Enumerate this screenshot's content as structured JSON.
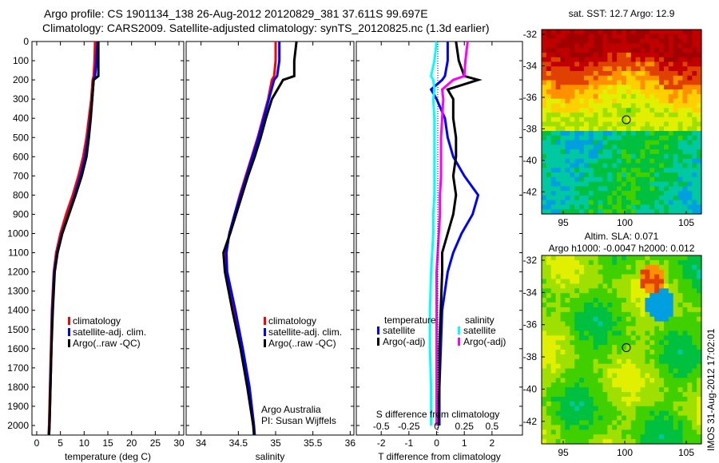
{
  "header": {
    "line1": "Argo profile: CS 1901134_138 26-Aug-2012 20120829_381 37.611S 99.697E",
    "line2": "Climatology: CARS2009. Satellite-adjusted climatology: synTS_20120825.nc (1.3d earlier)"
  },
  "colors": {
    "climatology": "#ff0000",
    "satellite": "#0000ff",
    "argo": "#000000",
    "s_satellite": "#00ffff",
    "s_argo": "#ff00ff"
  },
  "chart_data": [
    {
      "type": "line",
      "name": "temperature",
      "xlabel": "temperature (deg C)",
      "xlim": [
        -1,
        31
      ],
      "ylim": [
        2050,
        0
      ],
      "xticks": [
        "0",
        "5",
        "10",
        "15",
        "20",
        "25",
        "30"
      ],
      "xtick_values": [
        0,
        5,
        10,
        15,
        20,
        25,
        30
      ],
      "yticks": [
        "0",
        "100",
        "200",
        "300",
        "400",
        "500",
        "600",
        "700",
        "800",
        "900",
        "1000",
        "1100",
        "1200",
        "1300",
        "1400",
        "1500",
        "1600",
        "1700",
        "1800",
        "1900",
        "2000"
      ],
      "legend": [
        "climatology",
        "satellite-adj. clim.",
        "Argo(..raw -QC)"
      ],
      "depth": [
        0,
        100,
        180,
        200,
        300,
        400,
        500,
        600,
        700,
        800,
        900,
        1000,
        1100,
        1200,
        1400,
        1600,
        1800,
        2000,
        2050
      ],
      "series": [
        {
          "name": "climatology",
          "values": [
            12.3,
            12.2,
            12.0,
            11.8,
            11.5,
            11.0,
            10.5,
            9.8,
            8.8,
            7.6,
            6.2,
            5.0,
            4.1,
            3.6,
            3.2,
            3.0,
            2.8,
            2.6,
            2.5
          ]
        },
        {
          "name": "satellite",
          "values": [
            12.8,
            12.6,
            12.3,
            12.0,
            11.7,
            11.3,
            10.8,
            10.2,
            9.2,
            8.0,
            6.7,
            5.3,
            4.3,
            3.7,
            3.3,
            3.1,
            2.9,
            2.7,
            2.6
          ]
        },
        {
          "name": "argo",
          "values": [
            13.0,
            13.0,
            13.0,
            12.0,
            11.7,
            11.4,
            11.0,
            10.5,
            9.5,
            8.2,
            6.8,
            5.4,
            4.4,
            3.8,
            3.4,
            3.1,
            2.9,
            2.7,
            2.6
          ]
        }
      ]
    },
    {
      "type": "line",
      "name": "salinity",
      "xlabel": "salinity",
      "xlim": [
        33.8,
        36.05
      ],
      "ylim": [
        2050,
        0
      ],
      "xticks": [
        "34",
        "34.5",
        "35",
        "35.5",
        "36"
      ],
      "xtick_values": [
        34,
        34.5,
        35,
        35.5,
        36
      ],
      "legend": [
        "climatology",
        "satellite-adj. clim.",
        "Argo(..raw -QC)"
      ],
      "notes": [
        "Argo Australia",
        "PI: Susan Wijffels"
      ],
      "depth": [
        0,
        100,
        180,
        200,
        300,
        400,
        500,
        600,
        700,
        800,
        900,
        1000,
        1100,
        1200,
        1400,
        1600,
        1800,
        2000,
        2050
      ],
      "series": [
        {
          "name": "climatology",
          "values": [
            35.0,
            35.0,
            34.98,
            34.95,
            34.9,
            34.83,
            34.76,
            34.68,
            34.6,
            34.52,
            34.45,
            34.38,
            34.33,
            34.34,
            34.45,
            34.55,
            34.64,
            34.7,
            34.72
          ]
        },
        {
          "name": "satellite",
          "values": [
            35.05,
            35.05,
            35.02,
            34.98,
            34.91,
            34.84,
            34.77,
            34.69,
            34.61,
            34.53,
            34.45,
            34.38,
            34.34,
            34.35,
            34.46,
            34.56,
            34.65,
            34.71,
            34.72
          ]
        },
        {
          "name": "argo",
          "values": [
            35.28,
            35.25,
            35.25,
            35.1,
            34.95,
            34.87,
            34.8,
            34.72,
            34.63,
            34.55,
            34.47,
            34.39,
            34.3,
            34.32,
            34.42,
            34.53,
            34.62,
            34.7,
            34.71
          ]
        }
      ]
    },
    {
      "type": "line",
      "name": "difference",
      "xlabel": "T difference from climatology",
      "x2label": "S difference from climatology",
      "xlim": [
        -2.9,
        3.1
      ],
      "xticks": [
        "-2",
        "-1",
        "0",
        "1",
        "2"
      ],
      "xtick_values": [
        -2,
        -1,
        0,
        1,
        2
      ],
      "x2ticks": [
        "-0.5",
        "-0.25",
        "0",
        "0.25",
        "0.5"
      ],
      "x2tick_values": [
        -0.5,
        -0.25,
        0,
        0.25,
        0.5
      ],
      "legend_temperature": {
        "title": "temperature",
        "items": [
          "satellite",
          "Argo(-adj)"
        ]
      },
      "legend_salinity": {
        "title": "salinity",
        "items": [
          "satellite",
          "Argo(-adj)"
        ]
      },
      "depth": [
        0,
        100,
        180,
        200,
        250,
        300,
        400,
        500,
        600,
        700,
        800,
        900,
        1000,
        1100,
        1200,
        1400,
        1600,
        1800,
        2000
      ],
      "series": [
        {
          "name": "T satellite",
          "values": [
            0.4,
            0.4,
            0.3,
            0.2,
            -0.2,
            0.0,
            0.3,
            0.4,
            0.6,
            1.0,
            1.5,
            1.3,
            0.9,
            0.6,
            0.4,
            0.2,
            0.15,
            0.1,
            0.1
          ]
        },
        {
          "name": "T Argo(-adj)",
          "values": [
            0.7,
            0.8,
            1.0,
            1.5,
            0.4,
            0.6,
            0.6,
            0.7,
            0.7,
            0.6,
            0.7,
            0.6,
            0.4,
            0.2,
            0.2,
            0.15,
            0.1,
            0.1,
            0.05
          ]
        },
        {
          "name": "S satellite",
          "values": [
            0.0,
            -0.02,
            -0.05,
            -0.03,
            -0.02,
            -0.03,
            -0.02,
            -0.02,
            -0.02,
            -0.02,
            -0.02,
            -0.03,
            -0.03,
            -0.04,
            -0.05,
            -0.06,
            -0.06,
            -0.05,
            -0.05
          ]
        },
        {
          "name": "S Argo(-adj)",
          "values": [
            0.28,
            0.26,
            0.25,
            0.15,
            0.05,
            0.06,
            0.05,
            0.04,
            0.04,
            0.04,
            0.03,
            0.03,
            0.02,
            0.01,
            0.0,
            0.0,
            0.0,
            0.0,
            0.0
          ]
        }
      ]
    }
  ],
  "maps": {
    "sst": {
      "title": "sat. SST: 12.7 Argo: 12.9",
      "yticks": [
        "-32",
        "-34",
        "-36",
        "-38",
        "-40",
        "-42"
      ],
      "xticks": [
        "95",
        "100",
        "105"
      ]
    },
    "sla": {
      "title1": "Altim. SLA: 0.071",
      "title2": "Argo h1000: -0.0047 h2000: 0.012",
      "yticks": [
        "-32",
        "-34",
        "-36",
        "-38",
        "-40",
        "-42"
      ],
      "xticks": [
        "95",
        "100",
        "105"
      ]
    },
    "stamp": "IMOS 31-Aug-2012 17:02:01"
  }
}
